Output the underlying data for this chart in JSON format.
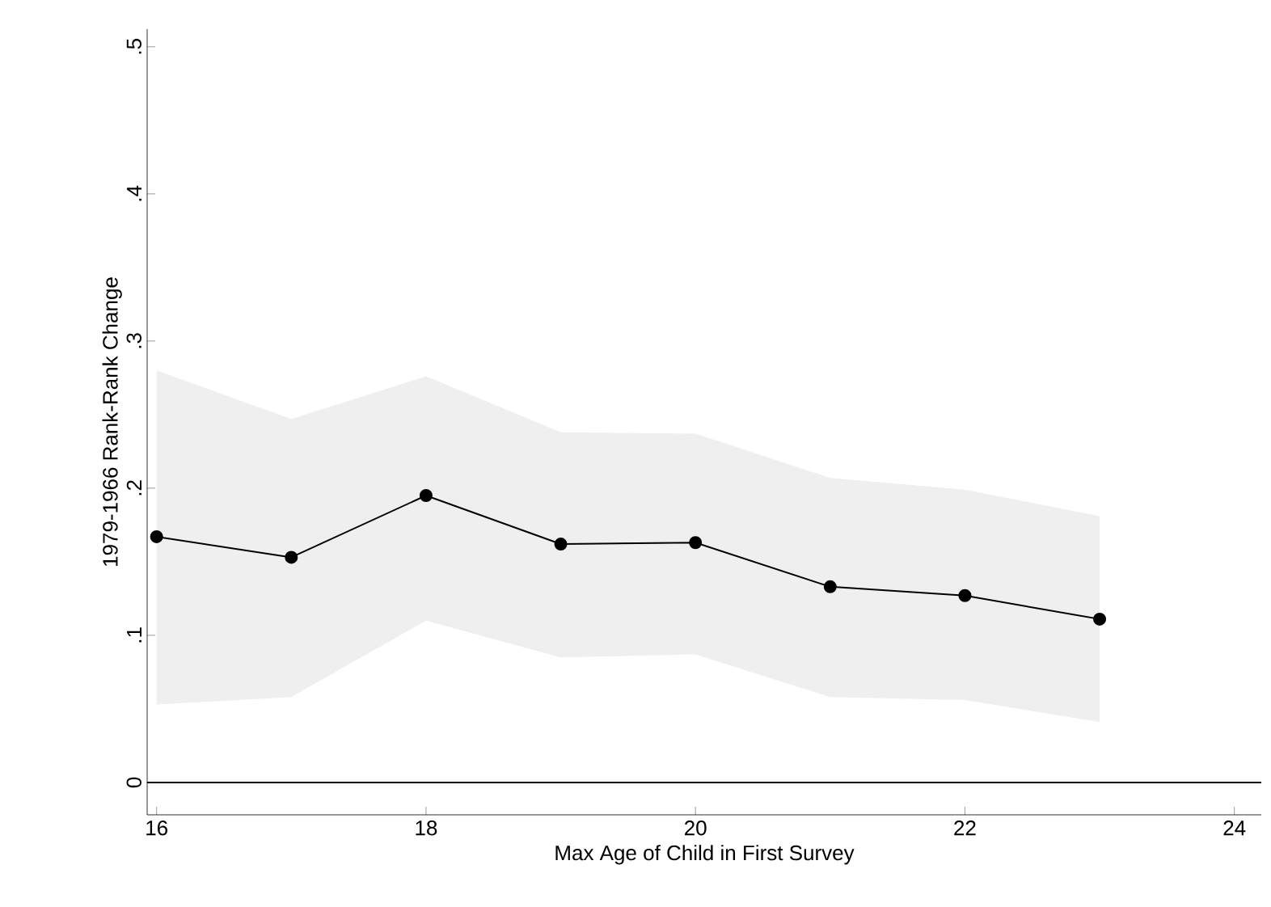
{
  "chart_data": {
    "type": "line",
    "xlabel": "Max Age of Child in First Survey",
    "ylabel": "1979-1966 Rank-Rank Change",
    "x": [
      16,
      17,
      18,
      19,
      20,
      21,
      22,
      23
    ],
    "series": [
      {
        "color": "#000000",
        "values": [
          0.167,
          0.153,
          0.195,
          0.162,
          0.163,
          0.133,
          0.127,
          0.111
        ],
        "lower": [
          0.053,
          0.058,
          0.11,
          0.085,
          0.087,
          0.058,
          0.056,
          0.041
        ],
        "upper": [
          0.28,
          0.247,
          0.276,
          0.238,
          0.237,
          0.207,
          0.199,
          0.181
        ]
      }
    ],
    "xlim": [
      15.93,
      24.2
    ],
    "ylim": [
      -0.022,
      0.512
    ],
    "xticks": [
      16,
      18,
      20,
      22,
      24
    ],
    "yticks": [
      {
        "value": 0,
        "label": "0"
      },
      {
        "value": 0.1,
        "label": ".1"
      },
      {
        "value": 0.2,
        "label": ".2"
      },
      {
        "value": 0.3,
        "label": ".3"
      },
      {
        "value": 0.4,
        "label": ".4"
      },
      {
        "value": 0.5,
        "label": ".5"
      }
    ],
    "ref_lines": [
      {
        "axis": "y",
        "value": 0,
        "color": "#000000"
      }
    ],
    "marker": "circle",
    "line_style": "solid"
  }
}
